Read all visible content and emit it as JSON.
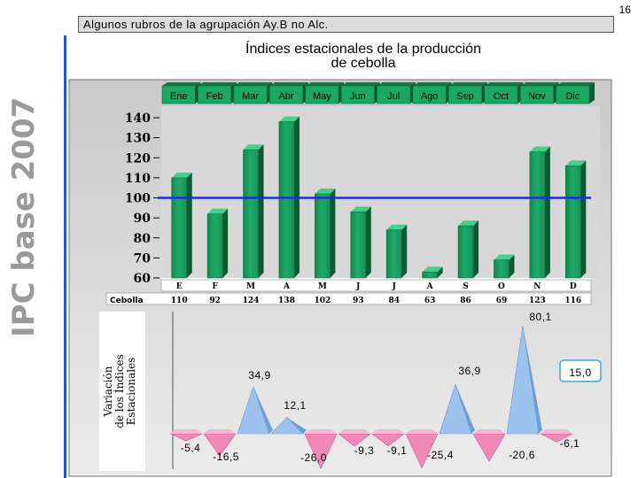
{
  "page_number": "16",
  "header": {
    "text": "Algunos rubros de la agrupación Ay.B no Alc."
  },
  "side_label": "IPC base 2007",
  "chart_data": [
    {
      "type": "bar",
      "title_line1": "Índices estacionales de la producción",
      "title_line2": "de  cebolla",
      "month_labels": [
        "Ene",
        "Feb",
        "Mar",
        "Abr",
        "May",
        "Jun",
        "Jul",
        "Ago",
        "Sep",
        "Oct",
        "Nov",
        "Dic"
      ],
      "categories": [
        "E",
        "F",
        "M",
        "A",
        "M",
        "J",
        "J",
        "A",
        "S",
        "O",
        "N",
        "D"
      ],
      "series": [
        {
          "name": "Cebolla",
          "values": [
            110,
            92,
            124,
            138,
            102,
            93,
            84,
            63,
            86,
            69,
            123,
            116
          ]
        }
      ],
      "ylim": [
        60,
        140
      ],
      "yticks": [
        60,
        70,
        80,
        90,
        100,
        110,
        120,
        130,
        140
      ],
      "reference_line": 100,
      "bar_color": "#1fa86a",
      "reference_color": "#1a2fd4"
    },
    {
      "type": "area",
      "ylabel_lines": [
        "Variación",
        "de los Índices",
        "Estacionales"
      ],
      "values": [
        -5.4,
        -16.5,
        34.9,
        12.1,
        -26.0,
        -9.3,
        -9.1,
        -25.4,
        36.9,
        -20.6,
        80.1,
        -6.1
      ],
      "labels": [
        "-5,4",
        "-16,5",
        "34,9",
        "12,1",
        "-26,0",
        "-9,3",
        "-9,1",
        "-25,4",
        "36,9",
        "-20,6",
        "80,1",
        "-6,1"
      ],
      "highlight": "15,0",
      "positive_color": "#9cc3ee",
      "negative_color": "#f088b8"
    }
  ]
}
